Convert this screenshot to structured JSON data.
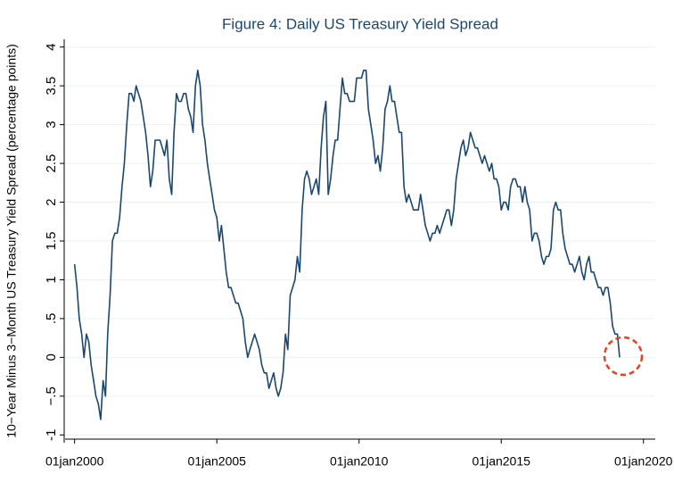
{
  "chart_data": {
    "type": "line",
    "title": "Figure 4: Daily US Treasury Yield Spread",
    "ylabel": "10−Year Minus 3−Month US Treasury Yield Spread (percentage points)",
    "xlim": [
      "1999-09",
      "2020-06"
    ],
    "xticks": [
      {
        "value": "2000-01-01",
        "label": "01jan2000"
      },
      {
        "value": "2005-01-01",
        "label": "01jan2005"
      },
      {
        "value": "2010-01-01",
        "label": "01jan2010"
      },
      {
        "value": "2015-01-01",
        "label": "01jan2015"
      },
      {
        "value": "2020-01-01",
        "label": "01jan2020"
      }
    ],
    "ylim": [
      -1.1,
      4.1
    ],
    "yticks": [
      -1,
      {
        "value": -0.5,
        "label": "−.5"
      },
      0,
      {
        "value": 0.5,
        "label": ".5"
      },
      1,
      1.5,
      2,
      2.5,
      3,
      3.5,
      4
    ],
    "grid": true,
    "x": [
      "2000-01",
      "2000-02",
      "2000-03",
      "2000-04",
      "2000-05",
      "2000-06",
      "2000-07",
      "2000-08",
      "2000-09",
      "2000-10",
      "2000-11",
      "2000-12",
      "2001-01",
      "2001-02",
      "2001-03",
      "2001-04",
      "2001-05",
      "2001-06",
      "2001-07",
      "2001-08",
      "2001-09",
      "2001-10",
      "2001-11",
      "2001-12",
      "2002-01",
      "2002-02",
      "2002-03",
      "2002-04",
      "2002-05",
      "2002-06",
      "2002-07",
      "2002-08",
      "2002-09",
      "2002-10",
      "2002-11",
      "2002-12",
      "2003-01",
      "2003-02",
      "2003-03",
      "2003-04",
      "2003-05",
      "2003-06",
      "2003-07",
      "2003-08",
      "2003-09",
      "2003-10",
      "2003-11",
      "2003-12",
      "2004-01",
      "2004-02",
      "2004-03",
      "2004-04",
      "2004-05",
      "2004-06",
      "2004-07",
      "2004-08",
      "2004-09",
      "2004-10",
      "2004-11",
      "2004-12",
      "2005-01",
      "2005-02",
      "2005-03",
      "2005-04",
      "2005-05",
      "2005-06",
      "2005-07",
      "2005-08",
      "2005-09",
      "2005-10",
      "2005-11",
      "2005-12",
      "2006-01",
      "2006-02",
      "2006-03",
      "2006-04",
      "2006-05",
      "2006-06",
      "2006-07",
      "2006-08",
      "2006-09",
      "2006-10",
      "2006-11",
      "2006-12",
      "2007-01",
      "2007-02",
      "2007-03",
      "2007-04",
      "2007-05",
      "2007-06",
      "2007-07",
      "2007-08",
      "2007-09",
      "2007-10",
      "2007-11",
      "2007-12",
      "2008-01",
      "2008-02",
      "2008-03",
      "2008-04",
      "2008-05",
      "2008-06",
      "2008-07",
      "2008-08",
      "2008-09",
      "2008-10",
      "2008-11",
      "2008-12",
      "2009-01",
      "2009-02",
      "2009-03",
      "2009-04",
      "2009-05",
      "2009-06",
      "2009-07",
      "2009-08",
      "2009-09",
      "2009-10",
      "2009-11",
      "2009-12",
      "2010-01",
      "2010-02",
      "2010-03",
      "2010-04",
      "2010-05",
      "2010-06",
      "2010-07",
      "2010-08",
      "2010-09",
      "2010-10",
      "2010-11",
      "2010-12",
      "2011-01",
      "2011-02",
      "2011-03",
      "2011-04",
      "2011-05",
      "2011-06",
      "2011-07",
      "2011-08",
      "2011-09",
      "2011-10",
      "2011-11",
      "2011-12",
      "2012-01",
      "2012-02",
      "2012-03",
      "2012-04",
      "2012-05",
      "2012-06",
      "2012-07",
      "2012-08",
      "2012-09",
      "2012-10",
      "2012-11",
      "2012-12",
      "2013-01",
      "2013-02",
      "2013-03",
      "2013-04",
      "2013-05",
      "2013-06",
      "2013-07",
      "2013-08",
      "2013-09",
      "2013-10",
      "2013-11",
      "2013-12",
      "2014-01",
      "2014-02",
      "2014-03",
      "2014-04",
      "2014-05",
      "2014-06",
      "2014-07",
      "2014-08",
      "2014-09",
      "2014-10",
      "2014-11",
      "2014-12",
      "2015-01",
      "2015-02",
      "2015-03",
      "2015-04",
      "2015-05",
      "2015-06",
      "2015-07",
      "2015-08",
      "2015-09",
      "2015-10",
      "2015-11",
      "2015-12",
      "2016-01",
      "2016-02",
      "2016-03",
      "2016-04",
      "2016-05",
      "2016-06",
      "2016-07",
      "2016-08",
      "2016-09",
      "2016-10",
      "2016-11",
      "2016-12",
      "2017-01",
      "2017-02",
      "2017-03",
      "2017-04",
      "2017-05",
      "2017-06",
      "2017-07",
      "2017-08",
      "2017-09",
      "2017-10",
      "2017-11",
      "2017-12",
      "2018-01",
      "2018-02",
      "2018-03",
      "2018-04",
      "2018-05",
      "2018-06",
      "2018-07",
      "2018-08",
      "2018-09",
      "2018-10",
      "2018-11",
      "2018-12",
      "2019-01",
      "2019-02",
      "2019-03"
    ],
    "series": [
      {
        "color": "#1a476f",
        "values": [
          1.2,
          0.9,
          0.5,
          0.3,
          0.0,
          0.3,
          0.2,
          -0.1,
          -0.3,
          -0.5,
          -0.6,
          -0.8,
          -0.3,
          -0.5,
          0.3,
          0.8,
          1.5,
          1.6,
          1.6,
          1.8,
          2.2,
          2.5,
          3.0,
          3.4,
          3.4,
          3.3,
          3.5,
          3.4,
          3.3,
          3.1,
          2.9,
          2.6,
          2.2,
          2.4,
          2.8,
          2.8,
          2.8,
          2.7,
          2.6,
          2.8,
          2.3,
          2.1,
          2.9,
          3.4,
          3.3,
          3.3,
          3.4,
          3.4,
          3.2,
          3.1,
          2.9,
          3.5,
          3.7,
          3.5,
          3.0,
          2.8,
          2.5,
          2.3,
          2.1,
          1.9,
          1.8,
          1.5,
          1.7,
          1.4,
          1.1,
          0.9,
          0.9,
          0.8,
          0.7,
          0.7,
          0.6,
          0.5,
          0.2,
          0.0,
          0.1,
          0.2,
          0.3,
          0.2,
          0.1,
          -0.1,
          -0.2,
          -0.2,
          -0.4,
          -0.3,
          -0.2,
          -0.4,
          -0.5,
          -0.4,
          -0.2,
          0.3,
          0.1,
          0.8,
          0.9,
          1.0,
          1.3,
          1.1,
          1.9,
          2.3,
          2.4,
          2.3,
          2.1,
          2.2,
          2.3,
          2.1,
          2.7,
          3.1,
          3.3,
          2.1,
          2.3,
          2.6,
          2.8,
          2.8,
          3.2,
          3.6,
          3.4,
          3.4,
          3.3,
          3.3,
          3.3,
          3.6,
          3.6,
          3.6,
          3.7,
          3.7,
          3.2,
          3.0,
          2.8,
          2.5,
          2.6,
          2.4,
          2.7,
          3.2,
          3.3,
          3.5,
          3.3,
          3.3,
          3.1,
          2.9,
          2.9,
          2.2,
          2.0,
          2.1,
          2.0,
          1.9,
          1.9,
          1.9,
          2.1,
          1.9,
          1.7,
          1.6,
          1.5,
          1.6,
          1.6,
          1.7,
          1.6,
          1.7,
          1.8,
          1.9,
          1.9,
          1.7,
          1.9,
          2.3,
          2.5,
          2.7,
          2.8,
          2.6,
          2.7,
          2.9,
          2.8,
          2.7,
          2.7,
          2.6,
          2.5,
          2.6,
          2.5,
          2.4,
          2.5,
          2.3,
          2.3,
          2.2,
          1.9,
          2.0,
          2.0,
          1.9,
          2.2,
          2.3,
          2.3,
          2.2,
          2.2,
          2.0,
          2.2,
          2.0,
          1.9,
          1.5,
          1.6,
          1.6,
          1.5,
          1.3,
          1.2,
          1.3,
          1.3,
          1.4,
          1.9,
          2.0,
          1.9,
          1.9,
          1.6,
          1.4,
          1.3,
          1.2,
          1.2,
          1.1,
          1.2,
          1.3,
          1.1,
          1.0,
          1.2,
          1.3,
          1.1,
          1.1,
          1.0,
          0.9,
          0.9,
          0.8,
          0.9,
          0.9,
          0.7,
          0.4,
          0.3,
          0.3,
          0.0
        ]
      }
    ]
  }
}
